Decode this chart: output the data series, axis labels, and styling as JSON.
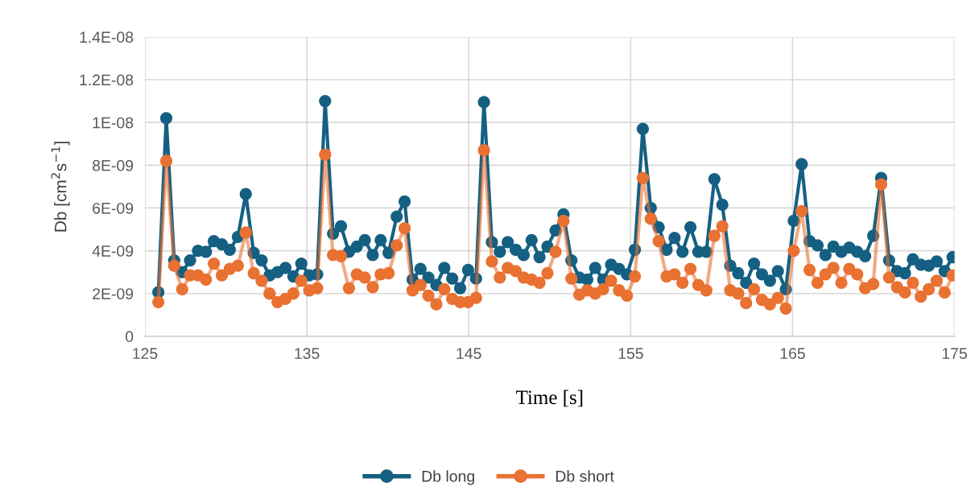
{
  "chart_data": {
    "type": "line",
    "xlabel": "Time [s]",
    "ylabel": "Db [cm$^{2}$s$^{−1}$]",
    "xlim": [
      125,
      175
    ],
    "xticks": [
      125,
      135,
      145,
      155,
      165,
      175
    ],
    "ylim": [
      0,
      1.4e-08
    ],
    "yticks": [
      0,
      {
        "value": 2e-09,
        "label": "2E-09"
      },
      {
        "value": 4e-09,
        "label": "4E-09"
      },
      {
        "value": 6e-09,
        "label": "6E-09"
      },
      {
        "value": 8e-09,
        "label": "8E-09"
      },
      {
        "value": 1e-08,
        "label": "1E-08"
      },
      {
        "value": 1.2e-08,
        "label": "1.2E-08"
      },
      {
        "value": 1.4e-08,
        "label": "1.4E-08"
      }
    ],
    "grid": true,
    "legend": "bottom",
    "marker": "circle",
    "line_style": "solid",
    "x": [
      125.83,
      126.32,
      126.81,
      127.3,
      127.79,
      128.28,
      128.77,
      129.26,
      129.75,
      130.24,
      130.74,
      131.23,
      131.72,
      132.21,
      132.7,
      133.19,
      133.68,
      134.17,
      134.66,
      135.15,
      135.64,
      136.13,
      136.62,
      137.11,
      137.6,
      138.09,
      138.58,
      139.07,
      139.56,
      140.05,
      140.55,
      141.04,
      141.53,
      142.02,
      142.51,
      143.0,
      143.49,
      143.98,
      144.47,
      144.96,
      145.45,
      145.94,
      146.43,
      146.92,
      147.41,
      147.9,
      148.39,
      148.88,
      149.37,
      149.86,
      150.36,
      150.85,
      151.34,
      151.83,
      152.32,
      152.81,
      153.3,
      153.79,
      154.28,
      154.77,
      155.26,
      155.75,
      156.24,
      156.73,
      157.22,
      157.71,
      158.2,
      158.69,
      159.18,
      159.67,
      160.17,
      160.66,
      161.15,
      161.64,
      162.13,
      162.62,
      163.11,
      163.6,
      164.09,
      164.58,
      165.07,
      165.56,
      166.05,
      166.54,
      167.03,
      167.52,
      168.01,
      168.5,
      168.99,
      169.48,
      169.98,
      170.47,
      170.96,
      171.45,
      171.94,
      172.43,
      172.92,
      173.41,
      173.9,
      174.39,
      174.88
    ],
    "series": [
      {
        "name": "Db long",
        "color": "#156082",
        "values": [
          2.06e-09,
          1.02e-08,
          3.55e-09,
          3e-09,
          3.55e-09,
          4e-09,
          3.95e-09,
          4.45e-09,
          4.3e-09,
          4.05e-09,
          4.65e-09,
          6.65e-09,
          3.9e-09,
          3.55e-09,
          2.85e-09,
          3e-09,
          3.2e-09,
          2.8e-09,
          3.4e-09,
          2.85e-09,
          2.9e-09,
          1.1e-08,
          4.8e-09,
          5.15e-09,
          3.95e-09,
          4.2e-09,
          4.5e-09,
          3.8e-09,
          4.5e-09,
          3.9e-09,
          5.6e-09,
          6.3e-09,
          2.65e-09,
          3.15e-09,
          2.75e-09,
          2.4e-09,
          3.2e-09,
          2.7e-09,
          2.25e-09,
          3.1e-09,
          2.7e-09,
          1.095e-08,
          4.4e-09,
          3.95e-09,
          4.4e-09,
          4.05e-09,
          3.8e-09,
          4.5e-09,
          3.7e-09,
          4.2e-09,
          4.95e-09,
          5.7e-09,
          3.55e-09,
          2.75e-09,
          2.65e-09,
          3.2e-09,
          2.65e-09,
          3.35e-09,
          3.15e-09,
          2.9e-09,
          4.05e-09,
          9.7e-09,
          6e-09,
          5.1e-09,
          4.05e-09,
          4.6e-09,
          3.95e-09,
          5.1e-09,
          3.95e-09,
          3.95e-09,
          7.35e-09,
          6.15e-09,
          3.3e-09,
          2.95e-09,
          2.5e-09,
          3.4e-09,
          2.9e-09,
          2.6e-09,
          3.05e-09,
          2.2e-09,
          5.4e-09,
          8.05e-09,
          4.45e-09,
          4.25e-09,
          3.8e-09,
          4.2e-09,
          3.95e-09,
          4.15e-09,
          3.95e-09,
          3.75e-09,
          4.7e-09,
          7.4e-09,
          3.55e-09,
          3.05e-09,
          2.95e-09,
          3.6e-09,
          3.35e-09,
          3.3e-09,
          3.5e-09,
          3.05e-09,
          3.7e-09
        ]
      },
      {
        "name": "Db short",
        "color": "#e97132",
        "values": [
          1.6e-09,
          8.2e-09,
          3.3e-09,
          2.2e-09,
          2.85e-09,
          2.85e-09,
          2.65e-09,
          3.4e-09,
          2.85e-09,
          3.15e-09,
          3.3e-09,
          4.85e-09,
          2.95e-09,
          2.6e-09,
          2e-09,
          1.6e-09,
          1.75e-09,
          2e-09,
          2.6e-09,
          2.15e-09,
          2.25e-09,
          8.5e-09,
          3.8e-09,
          3.75e-09,
          2.25e-09,
          2.9e-09,
          2.75e-09,
          2.3e-09,
          2.9e-09,
          2.95e-09,
          4.25e-09,
          5.05e-09,
          2.15e-09,
          2.4e-09,
          1.9e-09,
          1.5e-09,
          2.2e-09,
          1.75e-09,
          1.6e-09,
          1.6e-09,
          1.8e-09,
          8.7e-09,
          3.5e-09,
          2.75e-09,
          3.2e-09,
          3.05e-09,
          2.75e-09,
          2.65e-09,
          2.5e-09,
          2.95e-09,
          3.95e-09,
          5.4e-09,
          2.7e-09,
          1.95e-09,
          2.15e-09,
          2e-09,
          2.2e-09,
          2.6e-09,
          2.15e-09,
          1.9e-09,
          2.8e-09,
          7.4e-09,
          5.5e-09,
          4.45e-09,
          2.8e-09,
          2.9e-09,
          2.5e-09,
          3.15e-09,
          2.4e-09,
          2.15e-09,
          4.7e-09,
          5.15e-09,
          2.15e-09,
          2e-09,
          1.55e-09,
          2.2e-09,
          1.7e-09,
          1.5e-09,
          1.8e-09,
          1.3e-09,
          4e-09,
          5.85e-09,
          3.1e-09,
          2.5e-09,
          2.9e-09,
          3.2e-09,
          2.5e-09,
          3.15e-09,
          2.9e-09,
          2.25e-09,
          2.45e-09,
          7.1e-09,
          2.75e-09,
          2.3e-09,
          2.05e-09,
          2.5e-09,
          1.85e-09,
          2.2e-09,
          2.6e-09,
          2.05e-09,
          2.85e-09
        ]
      }
    ]
  }
}
